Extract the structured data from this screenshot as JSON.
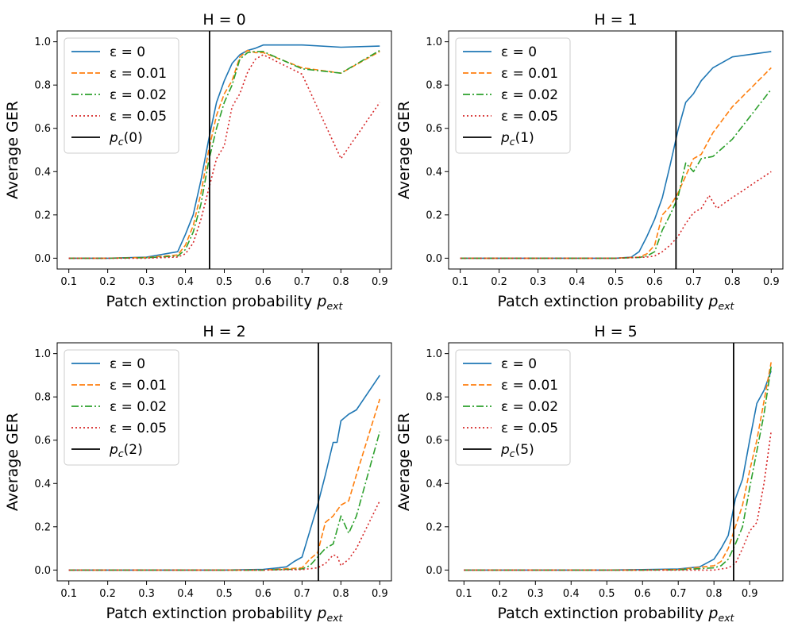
{
  "chart_data": [
    {
      "type": "line",
      "title": "H = 0",
      "xlabel": "Patch extinction probability",
      "xlabel_sub": "ext",
      "xlabel_base": "p",
      "ylabel": "Average GER",
      "xlim": [
        0.07,
        0.93
      ],
      "ylim": [
        -0.05,
        1.05
      ],
      "xticks": [
        0.1,
        0.2,
        0.3,
        0.4,
        0.5,
        0.6,
        0.7,
        0.8,
        0.9
      ],
      "xtick_labels": [
        "0.1",
        "0.2",
        "0.3",
        "0.4",
        "0.5",
        "0.6",
        "0.7",
        "0.8",
        "0.9"
      ],
      "yticks": [
        0.0,
        0.2,
        0.4,
        0.6,
        0.8,
        1.0
      ],
      "ytick_labels": [
        "0.0",
        "0.2",
        "0.4",
        "0.6",
        "0.8",
        "1.0"
      ],
      "legend_position": "top-left",
      "vline": {
        "x": 0.462,
        "label_base": "p",
        "label_sub": "c",
        "label_arg": "(0)",
        "color": "#000000"
      },
      "series": [
        {
          "name": "ε = 0",
          "color": "#1f77b4",
          "style": "solid",
          "x": [
            0.1,
            0.2,
            0.3,
            0.38,
            0.4,
            0.42,
            0.44,
            0.46,
            0.48,
            0.5,
            0.52,
            0.54,
            0.56,
            0.58,
            0.6,
            0.7,
            0.8,
            0.9
          ],
          "y": [
            0.0,
            0.0,
            0.005,
            0.03,
            0.11,
            0.2,
            0.36,
            0.55,
            0.72,
            0.82,
            0.9,
            0.94,
            0.96,
            0.97,
            0.985,
            0.985,
            0.975,
            0.98
          ]
        },
        {
          "name": "ε = 0.01",
          "color": "#ff7f0e",
          "style": "dashed",
          "x": [
            0.1,
            0.2,
            0.3,
            0.38,
            0.4,
            0.42,
            0.44,
            0.46,
            0.48,
            0.5,
            0.52,
            0.54,
            0.56,
            0.58,
            0.6,
            0.7,
            0.8,
            0.9
          ],
          "y": [
            0.0,
            0.0,
            0.003,
            0.015,
            0.06,
            0.15,
            0.3,
            0.5,
            0.66,
            0.76,
            0.82,
            0.93,
            0.96,
            0.95,
            0.95,
            0.88,
            0.855,
            0.955
          ]
        },
        {
          "name": "ε = 0.02",
          "color": "#2ca02c",
          "style": "dashdot",
          "x": [
            0.1,
            0.2,
            0.3,
            0.38,
            0.4,
            0.42,
            0.44,
            0.46,
            0.48,
            0.5,
            0.52,
            0.54,
            0.56,
            0.58,
            0.6,
            0.7,
            0.8,
            0.9
          ],
          "y": [
            0.0,
            0.0,
            0.002,
            0.01,
            0.04,
            0.12,
            0.25,
            0.45,
            0.6,
            0.72,
            0.8,
            0.92,
            0.95,
            0.955,
            0.955,
            0.875,
            0.855,
            0.96
          ]
        },
        {
          "name": "ε = 0.05",
          "color": "#d62728",
          "style": "dotted",
          "x": [
            0.1,
            0.2,
            0.3,
            0.38,
            0.4,
            0.42,
            0.44,
            0.46,
            0.48,
            0.5,
            0.52,
            0.54,
            0.56,
            0.58,
            0.6,
            0.7,
            0.8,
            0.9
          ],
          "y": [
            0.0,
            0.0,
            0.0,
            0.005,
            0.02,
            0.07,
            0.18,
            0.32,
            0.46,
            0.52,
            0.7,
            0.76,
            0.86,
            0.92,
            0.94,
            0.85,
            0.46,
            0.72
          ]
        }
      ]
    },
    {
      "type": "line",
      "title": "H = 1",
      "xlabel": "Patch extinction probability",
      "xlabel_sub": "ext",
      "xlabel_base": "p",
      "ylabel": "Average GER",
      "xlim": [
        0.07,
        0.93
      ],
      "ylim": [
        -0.05,
        1.05
      ],
      "xticks": [
        0.1,
        0.2,
        0.3,
        0.4,
        0.5,
        0.6,
        0.7,
        0.8,
        0.9
      ],
      "xtick_labels": [
        "0.1",
        "0.2",
        "0.3",
        "0.4",
        "0.5",
        "0.6",
        "0.7",
        "0.8",
        "0.9"
      ],
      "yticks": [
        0.0,
        0.2,
        0.4,
        0.6,
        0.8,
        1.0
      ],
      "ytick_labels": [
        "0.0",
        "0.2",
        "0.4",
        "0.6",
        "0.8",
        "1.0"
      ],
      "legend_position": "top-left",
      "vline": {
        "x": 0.655,
        "label_base": "p",
        "label_sub": "c",
        "label_arg": "(1)",
        "color": "#000000"
      },
      "series": [
        {
          "name": "ε = 0",
          "color": "#1f77b4",
          "style": "solid",
          "x": [
            0.1,
            0.2,
            0.3,
            0.4,
            0.5,
            0.54,
            0.56,
            0.58,
            0.6,
            0.62,
            0.64,
            0.66,
            0.68,
            0.7,
            0.72,
            0.75,
            0.8,
            0.9
          ],
          "y": [
            0.0,
            0.0,
            0.0,
            0.0,
            0.0,
            0.005,
            0.03,
            0.1,
            0.18,
            0.28,
            0.43,
            0.59,
            0.72,
            0.76,
            0.82,
            0.88,
            0.93,
            0.955
          ]
        },
        {
          "name": "ε = 0.01",
          "color": "#ff7f0e",
          "style": "dashed",
          "x": [
            0.1,
            0.2,
            0.3,
            0.4,
            0.5,
            0.56,
            0.58,
            0.6,
            0.62,
            0.64,
            0.66,
            0.68,
            0.7,
            0.72,
            0.75,
            0.8,
            0.9
          ],
          "y": [
            0.0,
            0.0,
            0.0,
            0.0,
            0.0,
            0.005,
            0.02,
            0.06,
            0.2,
            0.24,
            0.3,
            0.38,
            0.46,
            0.48,
            0.58,
            0.7,
            0.88
          ]
        },
        {
          "name": "ε = 0.02",
          "color": "#2ca02c",
          "style": "dashdot",
          "x": [
            0.1,
            0.2,
            0.3,
            0.4,
            0.5,
            0.56,
            0.58,
            0.6,
            0.62,
            0.64,
            0.66,
            0.68,
            0.7,
            0.72,
            0.75,
            0.8,
            0.9
          ],
          "y": [
            0.0,
            0.0,
            0.0,
            0.0,
            0.0,
            0.003,
            0.01,
            0.03,
            0.13,
            0.2,
            0.28,
            0.44,
            0.4,
            0.46,
            0.47,
            0.55,
            0.78
          ]
        },
        {
          "name": "ε = 0.05",
          "color": "#d62728",
          "style": "dotted",
          "x": [
            0.1,
            0.2,
            0.3,
            0.4,
            0.5,
            0.58,
            0.6,
            0.62,
            0.64,
            0.66,
            0.68,
            0.7,
            0.72,
            0.74,
            0.76,
            0.8,
            0.9
          ],
          "y": [
            0.0,
            0.0,
            0.0,
            0.0,
            0.0,
            0.005,
            0.01,
            0.03,
            0.06,
            0.1,
            0.16,
            0.21,
            0.23,
            0.29,
            0.23,
            0.28,
            0.4
          ]
        }
      ]
    },
    {
      "type": "line",
      "title": "H = 2",
      "xlabel": "Patch extinction probability",
      "xlabel_sub": "ext",
      "xlabel_base": "p",
      "ylabel": "Average GER",
      "xlim": [
        0.07,
        0.93
      ],
      "ylim": [
        -0.05,
        1.05
      ],
      "xticks": [
        0.1,
        0.2,
        0.3,
        0.4,
        0.5,
        0.6,
        0.7,
        0.8,
        0.9
      ],
      "xtick_labels": [
        "0.1",
        "0.2",
        "0.3",
        "0.4",
        "0.5",
        "0.6",
        "0.7",
        "0.8",
        "0.9"
      ],
      "yticks": [
        0.0,
        0.2,
        0.4,
        0.6,
        0.8,
        1.0
      ],
      "ytick_labels": [
        "0.0",
        "0.2",
        "0.4",
        "0.6",
        "0.8",
        "1.0"
      ],
      "legend_position": "top-left",
      "vline": {
        "x": 0.742,
        "label_base": "p",
        "label_sub": "c",
        "label_arg": "(2)",
        "color": "#000000"
      },
      "series": [
        {
          "name": "ε = 0",
          "color": "#1f77b4",
          "style": "solid",
          "x": [
            0.1,
            0.2,
            0.3,
            0.4,
            0.5,
            0.6,
            0.64,
            0.66,
            0.68,
            0.7,
            0.72,
            0.74,
            0.76,
            0.78,
            0.79,
            0.8,
            0.82,
            0.84,
            0.9
          ],
          "y": [
            0.0,
            0.0,
            0.0,
            0.0,
            0.0,
            0.003,
            0.01,
            0.015,
            0.04,
            0.06,
            0.18,
            0.3,
            0.44,
            0.59,
            0.59,
            0.69,
            0.72,
            0.74,
            0.9
          ]
        },
        {
          "name": "ε = 0.01",
          "color": "#ff7f0e",
          "style": "dashed",
          "x": [
            0.1,
            0.2,
            0.3,
            0.4,
            0.5,
            0.6,
            0.7,
            0.72,
            0.74,
            0.76,
            0.78,
            0.8,
            0.82,
            0.84,
            0.9
          ],
          "y": [
            0.0,
            0.0,
            0.0,
            0.0,
            0.0,
            0.0,
            0.01,
            0.05,
            0.08,
            0.22,
            0.25,
            0.3,
            0.32,
            0.44,
            0.79
          ]
        },
        {
          "name": "ε = 0.02",
          "color": "#2ca02c",
          "style": "dashdot",
          "x": [
            0.1,
            0.2,
            0.3,
            0.4,
            0.5,
            0.6,
            0.7,
            0.72,
            0.74,
            0.76,
            0.78,
            0.8,
            0.82,
            0.84,
            0.9
          ],
          "y": [
            0.0,
            0.0,
            0.0,
            0.0,
            0.0,
            0.0,
            0.005,
            0.02,
            0.06,
            0.1,
            0.12,
            0.25,
            0.17,
            0.25,
            0.64
          ]
        },
        {
          "name": "ε = 0.05",
          "color": "#d62728",
          "style": "dotted",
          "x": [
            0.1,
            0.2,
            0.3,
            0.4,
            0.5,
            0.6,
            0.7,
            0.74,
            0.76,
            0.78,
            0.79,
            0.8,
            0.82,
            0.84,
            0.9
          ],
          "y": [
            0.0,
            0.0,
            0.0,
            0.0,
            0.0,
            0.0,
            0.002,
            0.01,
            0.03,
            0.07,
            0.065,
            0.02,
            0.05,
            0.1,
            0.32
          ]
        }
      ]
    },
    {
      "type": "line",
      "title": "H = 5",
      "xlabel": "Patch extinction probability",
      "xlabel_sub": "ext",
      "xlabel_base": "p",
      "ylabel": "Average GER",
      "xlim": [
        0.057,
        0.993
      ],
      "ylim": [
        -0.05,
        1.05
      ],
      "xticks": [
        0.1,
        0.2,
        0.3,
        0.4,
        0.5,
        0.6,
        0.7,
        0.8,
        0.9
      ],
      "xtick_labels": [
        "0.1",
        "0.2",
        "0.3",
        "0.4",
        "0.5",
        "0.6",
        "0.7",
        "0.8",
        "0.9"
      ],
      "yticks": [
        0.0,
        0.2,
        0.4,
        0.6,
        0.8,
        1.0
      ],
      "ytick_labels": [
        "0.0",
        "0.2",
        "0.4",
        "0.6",
        "0.8",
        "1.0"
      ],
      "legend_position": "top-left",
      "vline": {
        "x": 0.855,
        "label_base": "p",
        "label_sub": "c",
        "label_arg": "(5)",
        "color": "#000000"
      },
      "series": [
        {
          "name": "ε = 0",
          "color": "#1f77b4",
          "style": "solid",
          "x": [
            0.1,
            0.2,
            0.3,
            0.4,
            0.5,
            0.6,
            0.7,
            0.76,
            0.8,
            0.82,
            0.84,
            0.86,
            0.88,
            0.9,
            0.92,
            0.94,
            0.96
          ],
          "y": [
            0.0,
            0.0,
            0.0,
            0.0,
            0.0,
            0.002,
            0.005,
            0.015,
            0.05,
            0.1,
            0.16,
            0.33,
            0.42,
            0.6,
            0.77,
            0.83,
            0.92
          ]
        },
        {
          "name": "ε = 0.01",
          "color": "#ff7f0e",
          "style": "dashed",
          "x": [
            0.1,
            0.2,
            0.3,
            0.4,
            0.5,
            0.6,
            0.7,
            0.8,
            0.82,
            0.84,
            0.86,
            0.88,
            0.9,
            0.92,
            0.94,
            0.96
          ],
          "y": [
            0.0,
            0.0,
            0.0,
            0.0,
            0.0,
            0.0,
            0.002,
            0.02,
            0.04,
            0.1,
            0.2,
            0.3,
            0.46,
            0.6,
            0.78,
            0.96
          ]
        },
        {
          "name": "ε = 0.02",
          "color": "#2ca02c",
          "style": "dashdot",
          "x": [
            0.1,
            0.2,
            0.3,
            0.4,
            0.5,
            0.6,
            0.7,
            0.8,
            0.82,
            0.84,
            0.86,
            0.88,
            0.9,
            0.92,
            0.94,
            0.96
          ],
          "y": [
            0.0,
            0.0,
            0.0,
            0.0,
            0.0,
            0.0,
            0.001,
            0.01,
            0.02,
            0.05,
            0.12,
            0.2,
            0.38,
            0.55,
            0.72,
            0.94
          ]
        },
        {
          "name": "ε = 0.05",
          "color": "#d62728",
          "style": "dotted",
          "x": [
            0.1,
            0.2,
            0.3,
            0.4,
            0.5,
            0.6,
            0.7,
            0.8,
            0.84,
            0.86,
            0.88,
            0.9,
            0.92,
            0.94,
            0.96
          ],
          "y": [
            0.0,
            0.0,
            0.0,
            0.0,
            0.0,
            0.0,
            0.0,
            0.0,
            0.01,
            0.03,
            0.1,
            0.18,
            0.22,
            0.4,
            0.64
          ]
        }
      ]
    }
  ]
}
